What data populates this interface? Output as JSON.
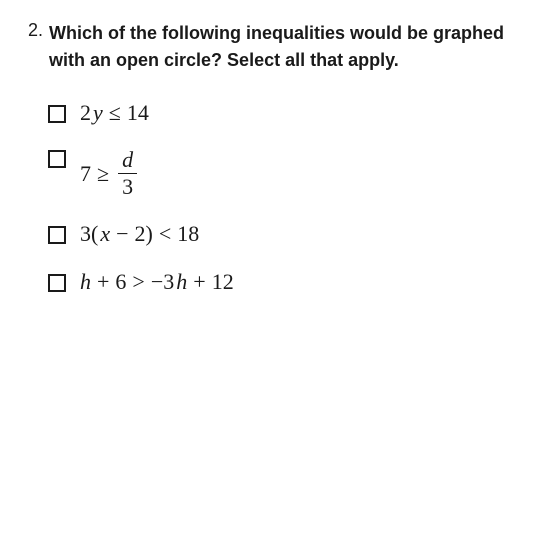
{
  "question": {
    "number": "2.",
    "text": "Which of the following inequalities would be graphed with an open circle? Select all that apply.",
    "number_fontsize": 18,
    "text_fontsize": 18,
    "text_fontweight": 700,
    "text_color": "#1a1a1a"
  },
  "options": [
    {
      "type": "simple",
      "tokens": {
        "t0": "2",
        "t1": "y",
        "t2": "≤",
        "t3": "14"
      }
    },
    {
      "type": "fraction",
      "tokens": {
        "t0": "7",
        "t1": "≥",
        "num": "d",
        "den": "3"
      }
    },
    {
      "type": "simple",
      "tokens": {
        "t0": "3(",
        "t1": "x",
        "t2": "−",
        "t3": "2)",
        "t4": "<",
        "t5": "18"
      }
    },
    {
      "type": "simple",
      "tokens": {
        "t0": "h",
        "t1": "+",
        "t2": "6",
        "t3": ">",
        "t4": "−3",
        "t5": "h",
        "t6": "+",
        "t7": "12"
      }
    }
  ],
  "styling": {
    "background_color": "#ffffff",
    "math_font": "Times New Roman",
    "math_fontsize": 22,
    "math_color": "#1a1a1a",
    "checkbox_border_color": "#1a1a1a",
    "checkbox_size": 18,
    "option_gap": 22
  }
}
